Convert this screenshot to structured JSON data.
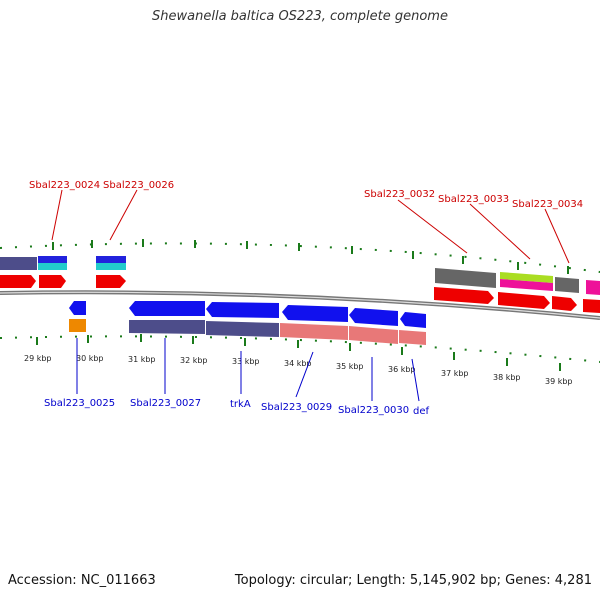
{
  "title": "Shewanella baltica OS223, complete genome",
  "footer": {
    "accession": "Accession: NC_011663",
    "summary": "Topology: circular; Length: 5,145,902 bp; Genes: 4,281"
  },
  "colors": {
    "top_labels": "#cc0000",
    "bottom_labels": "#0000cc",
    "ticks": "#1a7a1a",
    "backbone": "#888888"
  },
  "kbp_labels": [
    "29 kbp",
    "30 kbp",
    "31 kbp",
    "32 kbp",
    "33 kbp",
    "34 kbp",
    "35 kbp",
    "36 kbp",
    "37 kbp",
    "38 kbp",
    "39 kbp"
  ],
  "top_genes": [
    "Sbal223_0024",
    "Sbal223_0026",
    "Sbal223_0032",
    "Sbal223_0033",
    "Sbal223_0034"
  ],
  "bottom_genes": [
    "Sbal223_0025",
    "Sbal223_0027",
    "trkA",
    "Sbal223_0029",
    "Sbal223_0030",
    "def"
  ]
}
